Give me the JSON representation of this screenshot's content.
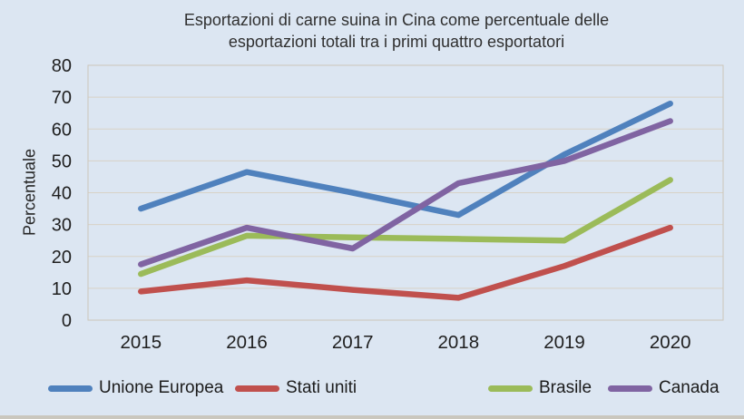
{
  "page": {
    "background_color": "#dce6f2",
    "gridline_color": "#d8d2c6",
    "plot_border_color": "#cdc7ba",
    "text_color": "#1f1f1f",
    "bottom_strip_color": "#cac7be"
  },
  "chart": {
    "title": "Esportazioni di carne suina in Cina come percentuale delle esportazioni totali tra i primi quattro esportatori",
    "ylabel": "Percentuale"
  },
  "chart_data": {
    "type": "line",
    "title": "Esportazioni di carne suina in Cina come percentuale delle esportazioni totali tra i primi quattro esportatori",
    "xlabel": "",
    "ylabel": "Percentuale",
    "categories": [
      "2015",
      "2016",
      "2017",
      "2018",
      "2019",
      "2020"
    ],
    "series": [
      {
        "name": "Unione Europea",
        "color": "#4f81bd",
        "values": [
          35,
          46.5,
          40,
          33,
          52,
          68
        ]
      },
      {
        "name": "Stati uniti",
        "color": "#c0504d",
        "values": [
          9,
          12.5,
          9.5,
          7,
          17,
          29
        ]
      },
      {
        "name": "Brasile",
        "color": "#9bbb59",
        "values": [
          14.5,
          26.5,
          26,
          25.5,
          25,
          44
        ]
      },
      {
        "name": "Canada",
        "color": "#8064a2",
        "values": [
          17.5,
          29,
          22.5,
          43,
          50,
          62.5
        ]
      }
    ],
    "ylim": [
      0,
      80
    ],
    "yticks": [
      0,
      10,
      20,
      30,
      40,
      50,
      60,
      70,
      80
    ],
    "grid": "horizontal-only",
    "legend_position": "bottom"
  }
}
